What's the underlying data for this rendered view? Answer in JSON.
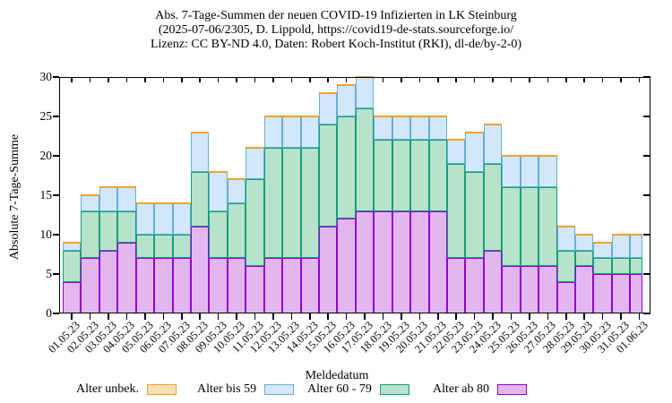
{
  "title": {
    "line1": "Abs. 7-Tage-Summen der neuen COVID-19 Infizierten in LK Steinburg",
    "line2": "(2025-07-06/2305, D. Lippold, https://covid19-de-stats.sourceforge.io/",
    "line3": "Lizenz: CC BY-ND 4.0, Daten: Robert Koch-Institut (RKI), dl-de/by-2-0)"
  },
  "y_axis": {
    "label": "Absolute 7-Tage-Summe"
  },
  "x_axis": {
    "label": "Meldedatum"
  },
  "chart_data": {
    "type": "bar",
    "stacked": true,
    "grid": false,
    "legend_position": "bottom",
    "ylim": [
      0,
      30
    ],
    "yticks": [
      0,
      5,
      10,
      15,
      20,
      25,
      30
    ],
    "categories": [
      "01.05.23",
      "02.05.23",
      "03.05.23",
      "04.05.23",
      "05.05.23",
      "06.05.23",
      "07.05.23",
      "08.05.23",
      "09.05.23",
      "10.05.23",
      "11.05.23",
      "12.05.23",
      "13.05.23",
      "14.05.23",
      "15.05.23",
      "16.05.23",
      "17.05.23",
      "18.05.23",
      "19.05.23",
      "20.05.23",
      "21.05.23",
      "22.05.23",
      "23.05.23",
      "24.05.23",
      "25.05.23",
      "26.05.23",
      "27.05.23",
      "28.05.23",
      "29.05.23",
      "30.05.23",
      "31.05.23",
      "01.06.23"
    ],
    "series": [
      {
        "name": "Alter ab 80",
        "fill": "#e2b7f0",
        "border": "#9400d3",
        "values": [
          4,
          7,
          8,
          9,
          7,
          7,
          7,
          11,
          7,
          7,
          6,
          7,
          7,
          7,
          11,
          12,
          13,
          13,
          13,
          13,
          13,
          7,
          7,
          8,
          6,
          6,
          6,
          4,
          6,
          5,
          5,
          5
        ]
      },
      {
        "name": "Alter 60 - 79",
        "fill": "#b7e2cb",
        "border": "#11a077",
        "values": [
          4,
          6,
          5,
          4,
          3,
          3,
          3,
          7,
          6,
          7,
          11,
          14,
          14,
          14,
          13,
          13,
          13,
          9,
          9,
          9,
          9,
          12,
          11,
          11,
          10,
          10,
          10,
          4,
          2,
          2,
          2,
          2
        ]
      },
      {
        "name": "Alter bis 59",
        "fill": "#d2e8f8",
        "border": "#67acdf",
        "values": [
          1,
          2,
          3,
          3,
          4,
          4,
          4,
          5,
          5,
          3,
          4,
          4,
          4,
          4,
          4,
          4,
          4,
          3,
          3,
          3,
          3,
          3,
          5,
          5,
          4,
          4,
          4,
          3,
          2,
          2,
          3,
          3
        ]
      },
      {
        "name": "Alter unbek.",
        "fill": "#f7e0b2",
        "border": "#efa033",
        "values": [
          0,
          0,
          0,
          0,
          0,
          0,
          0,
          0,
          0,
          0,
          0,
          0,
          0,
          0,
          0,
          0,
          0,
          0,
          0,
          0,
          0,
          0,
          0,
          0,
          0,
          0,
          0,
          0,
          0,
          0,
          0,
          0
        ]
      }
    ],
    "legend_order": [
      "Alter unbek.",
      "Alter bis 59",
      "Alter 60 - 79",
      "Alter ab 80"
    ]
  }
}
